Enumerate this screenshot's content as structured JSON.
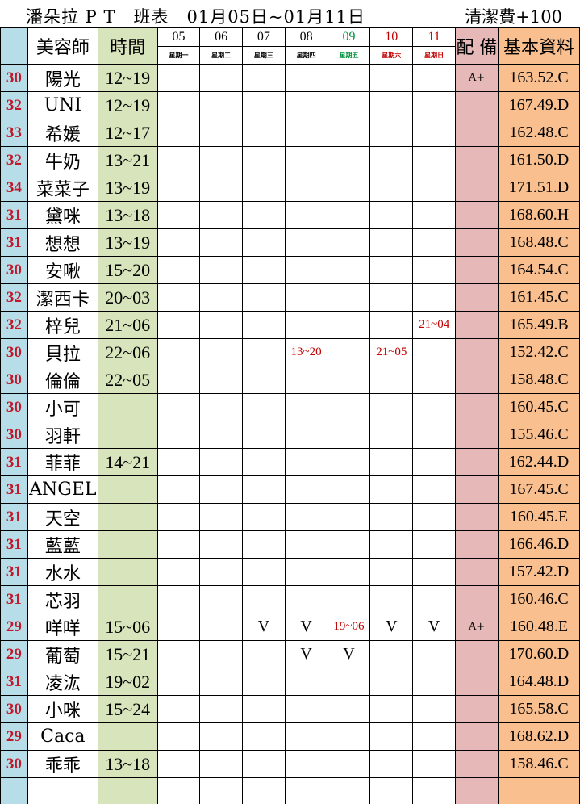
{
  "title": "潘朵拉 P T　班表　01月05日~01月11日",
  "fee": "清潔費+100",
  "headers": {
    "name": "美容師",
    "time": "時間",
    "note": "配 備",
    "info": "基本資料"
  },
  "days": [
    {
      "num": "05",
      "weekday": "星期一",
      "color": "#000000"
    },
    {
      "num": "06",
      "weekday": "星期二",
      "color": "#000000"
    },
    {
      "num": "07",
      "weekday": "星期三",
      "color": "#000000"
    },
    {
      "num": "08",
      "weekday": "星期四",
      "color": "#000000"
    },
    {
      "num": "09",
      "weekday": "星期五",
      "color": "#00913a"
    },
    {
      "num": "10",
      "weekday": "星期六",
      "color": "#c00000"
    },
    {
      "num": "11",
      "weekday": "星期日",
      "color": "#c00000"
    }
  ],
  "colors": {
    "age_bg": "#b7dde8",
    "time_bg": "#d7e4bc",
    "note_bg": "#e6b9b8",
    "info_bg": "#fabf8f",
    "age_text": "#c0182a"
  },
  "rows": [
    {
      "age": "30",
      "name": "陽光",
      "time": "12~19",
      "days": [
        "",
        "",
        "",
        "",
        "",
        "",
        ""
      ],
      "note": "A+",
      "info": "163.52.C"
    },
    {
      "age": "32",
      "name": "UNI",
      "time": "12~19",
      "days": [
        "",
        "",
        "",
        "",
        "",
        "",
        ""
      ],
      "note": "",
      "info": "167.49.D"
    },
    {
      "age": "33",
      "name": "希媛",
      "time": "12~17",
      "days": [
        "",
        "",
        "",
        "",
        "",
        "",
        ""
      ],
      "note": "",
      "info": "162.48.C"
    },
    {
      "age": "32",
      "name": "牛奶",
      "time": "13~21",
      "days": [
        "",
        "",
        "",
        "",
        "",
        "",
        ""
      ],
      "note": "",
      "info": "161.50.D"
    },
    {
      "age": "34",
      "name": "菜菜子",
      "time": "13~19",
      "days": [
        "",
        "",
        "",
        "",
        "",
        "",
        ""
      ],
      "note": "",
      "info": "171.51.D"
    },
    {
      "age": "31",
      "name": "黛咪",
      "time": "13~18",
      "days": [
        "",
        "",
        "",
        "",
        "",
        "",
        ""
      ],
      "note": "",
      "info": "168.60.H"
    },
    {
      "age": "31",
      "name": "想想",
      "time": "13~19",
      "days": [
        "",
        "",
        "",
        "",
        "",
        "",
        ""
      ],
      "note": "",
      "info": "168.48.C"
    },
    {
      "age": "30",
      "name": "安啾",
      "time": "15~20",
      "days": [
        "",
        "",
        "",
        "",
        "",
        "",
        ""
      ],
      "note": "",
      "info": "164.54.C"
    },
    {
      "age": "32",
      "name": "潔西卡",
      "time": "20~03",
      "days": [
        "",
        "",
        "",
        "",
        "",
        "",
        ""
      ],
      "note": "",
      "info": "161.45.C"
    },
    {
      "age": "32",
      "name": "梓兒",
      "time": "21~06",
      "days": [
        "",
        "",
        "",
        "",
        "",
        "",
        "21~04"
      ],
      "note": "",
      "info": "165.49.B"
    },
    {
      "age": "30",
      "name": "貝拉",
      "time": "22~06",
      "days": [
        "",
        "",
        "",
        "13~20",
        "",
        "21~05",
        ""
      ],
      "note": "",
      "info": "152.42.C"
    },
    {
      "age": "30",
      "name": "倫倫",
      "time": "22~05",
      "days": [
        "",
        "",
        "",
        "",
        "",
        "",
        ""
      ],
      "note": "",
      "info": "158.48.C"
    },
    {
      "age": "30",
      "name": "小可",
      "time": "",
      "days": [
        "",
        "",
        "",
        "",
        "",
        "",
        ""
      ],
      "note": "",
      "info": "160.45.C"
    },
    {
      "age": "30",
      "name": "羽軒",
      "time": "",
      "days": [
        "",
        "",
        "",
        "",
        "",
        "",
        ""
      ],
      "note": "",
      "info": "155.46.C"
    },
    {
      "age": "31",
      "name": "菲菲",
      "time": "14~21",
      "days": [
        "",
        "",
        "",
        "",
        "",
        "",
        ""
      ],
      "note": "",
      "info": "162.44.D"
    },
    {
      "age": "31",
      "name": "ANGEL",
      "time": "",
      "days": [
        "",
        "",
        "",
        "",
        "",
        "",
        ""
      ],
      "note": "",
      "info": "167.45.C"
    },
    {
      "age": "31",
      "name": "天空",
      "time": "",
      "days": [
        "",
        "",
        "",
        "",
        "",
        "",
        ""
      ],
      "note": "",
      "info": "160.45.E"
    },
    {
      "age": "31",
      "name": "藍藍",
      "time": "",
      "days": [
        "",
        "",
        "",
        "",
        "",
        "",
        ""
      ],
      "note": "",
      "info": "166.46.D"
    },
    {
      "age": "31",
      "name": "水水",
      "time": "",
      "days": [
        "",
        "",
        "",
        "",
        "",
        "",
        ""
      ],
      "note": "",
      "info": "157.42.D"
    },
    {
      "age": "31",
      "name": "芯羽",
      "time": "",
      "days": [
        "",
        "",
        "",
        "",
        "",
        "",
        ""
      ],
      "note": "",
      "info": "160.46.C"
    },
    {
      "age": "29",
      "name": "咩咩",
      "time": "15~06",
      "days": [
        "",
        "",
        "V",
        "V",
        "19~06",
        "V",
        "V"
      ],
      "note": "A+",
      "info": "160.48.E"
    },
    {
      "age": "29",
      "name": "葡萄",
      "time": "15~21",
      "days": [
        "",
        "",
        "",
        "V",
        "V",
        "",
        ""
      ],
      "note": "",
      "info": "170.60.D"
    },
    {
      "age": "31",
      "name": "凌汯",
      "time": "19~02",
      "days": [
        "",
        "",
        "",
        "",
        "",
        "",
        ""
      ],
      "note": "",
      "info": "164.48.D"
    },
    {
      "age": "30",
      "name": "小咪",
      "time": "15~24",
      "days": [
        "",
        "",
        "",
        "",
        "",
        "",
        ""
      ],
      "note": "",
      "info": "165.58.C"
    },
    {
      "age": "29",
      "name": "Caca",
      "time": "",
      "days": [
        "",
        "",
        "",
        "",
        "",
        "",
        ""
      ],
      "note": "",
      "info": "168.62.D"
    },
    {
      "age": "30",
      "name": "乖乖",
      "time": "13~18",
      "days": [
        "",
        "",
        "",
        "",
        "",
        "",
        ""
      ],
      "note": "",
      "info": "158.46.C"
    },
    {
      "age": "",
      "name": "",
      "time": "",
      "days": [
        "",
        "",
        "",
        "",
        "",
        "",
        ""
      ],
      "note": "",
      "info": ""
    }
  ]
}
